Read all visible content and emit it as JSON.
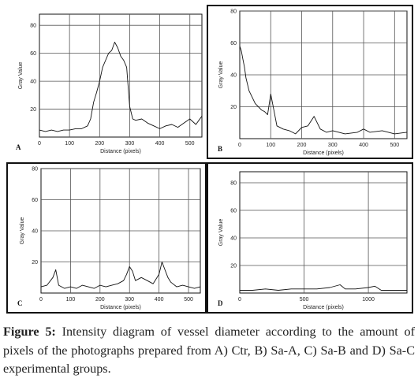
{
  "caption": {
    "label": "Figure 5:",
    "text": " Intensity diagram of vessel diameter according to the amount of pixels of the photographs prepared from A) Ctr, B) Sa-A, C) Sa-B and D) Sa-C experimental groups."
  },
  "chart_data": [
    {
      "panel": "A",
      "type": "line",
      "xlabel": "Distance (pixels)",
      "ylabel": "Gray Value",
      "xlim": [
        0,
        540
      ],
      "ylim": [
        0,
        88
      ],
      "xticks": [
        0,
        100,
        200,
        300,
        400,
        500
      ],
      "yticks": [
        20,
        40,
        60,
        80
      ],
      "grid": true,
      "x": [
        0,
        20,
        40,
        60,
        80,
        100,
        120,
        140,
        160,
        170,
        180,
        190,
        200,
        210,
        220,
        230,
        240,
        250,
        260,
        270,
        280,
        290,
        300,
        310,
        320,
        340,
        360,
        380,
        400,
        420,
        440,
        460,
        480,
        500,
        520,
        540
      ],
      "y": [
        5,
        4,
        5,
        4,
        5,
        5,
        6,
        6,
        8,
        13,
        25,
        32,
        40,
        50,
        55,
        60,
        62,
        68,
        64,
        58,
        55,
        50,
        22,
        13,
        12,
        13,
        10,
        8,
        6,
        8,
        9,
        7,
        10,
        13,
        9,
        15
      ]
    },
    {
      "panel": "B",
      "type": "line",
      "xlabel": "Distance (pixels)",
      "ylabel": "Gray Value",
      "xlim": [
        0,
        540
      ],
      "ylim": [
        0,
        80
      ],
      "xticks": [
        0,
        100,
        200,
        300,
        400,
        500
      ],
      "yticks": [
        20,
        40,
        60,
        80
      ],
      "grid": true,
      "x": [
        0,
        5,
        10,
        15,
        20,
        30,
        40,
        50,
        60,
        70,
        80,
        90,
        100,
        110,
        120,
        140,
        160,
        180,
        200,
        220,
        240,
        260,
        280,
        300,
        340,
        380,
        400,
        420,
        460,
        500,
        540
      ],
      "y": [
        58,
        55,
        50,
        45,
        38,
        30,
        26,
        22,
        20,
        18,
        17,
        15,
        28,
        18,
        8,
        6,
        5,
        3,
        7,
        8,
        14,
        6,
        4,
        5,
        3,
        4,
        6,
        4,
        5,
        3,
        4
      ]
    },
    {
      "panel": "C",
      "type": "line",
      "xlabel": "Distance (pixels)",
      "ylabel": "Gray Value",
      "xlim": [
        0,
        540
      ],
      "ylim": [
        0,
        80
      ],
      "xticks": [
        0,
        100,
        200,
        300,
        400,
        500
      ],
      "yticks": [
        20,
        40,
        60,
        80
      ],
      "grid": true,
      "x": [
        0,
        20,
        40,
        50,
        60,
        80,
        100,
        120,
        140,
        160,
        180,
        200,
        220,
        240,
        260,
        280,
        290,
        300,
        310,
        320,
        340,
        360,
        380,
        400,
        410,
        420,
        430,
        440,
        460,
        480,
        500,
        520,
        540
      ],
      "y": [
        4,
        5,
        10,
        15,
        5,
        3,
        4,
        3,
        5,
        4,
        3,
        5,
        4,
        5,
        6,
        8,
        12,
        17,
        14,
        8,
        10,
        8,
        6,
        12,
        20,
        15,
        10,
        7,
        4,
        5,
        4,
        3,
        4
      ]
    },
    {
      "panel": "D",
      "type": "line",
      "xlabel": "Distance (pixels)",
      "ylabel": "Gray Value",
      "xlim": [
        0,
        1300
      ],
      "ylim": [
        0,
        88
      ],
      "xticks": [
        0,
        500,
        1000
      ],
      "yticks": [
        20,
        40,
        60,
        80
      ],
      "grid": true,
      "x": [
        0,
        100,
        200,
        300,
        400,
        500,
        600,
        700,
        780,
        820,
        900,
        1000,
        1050,
        1100,
        1200,
        1300
      ],
      "y": [
        2,
        2,
        3,
        2,
        3,
        3,
        3,
        4,
        6,
        3,
        3,
        4,
        5,
        2,
        2,
        2
      ]
    }
  ],
  "panels": [
    "A",
    "B",
    "C",
    "D"
  ]
}
